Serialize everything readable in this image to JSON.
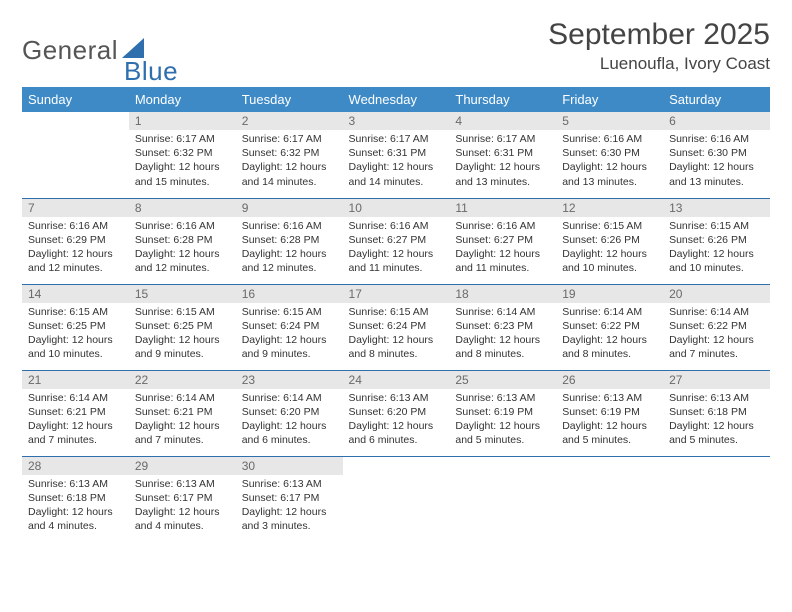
{
  "brand": {
    "word1": "General",
    "word2": "Blue",
    "color_word1": "#555555",
    "color_word2": "#2f6fae"
  },
  "title": "September 2025",
  "location": "Luenoufla, Ivory Coast",
  "colors": {
    "header_bg": "#3d8ac7",
    "header_text": "#ffffff",
    "daynum_bg": "#e7e7e7",
    "daynum_text": "#6a6a6a",
    "rule": "#2f6fae",
    "body_text": "#333333"
  },
  "weekdays": [
    "Sunday",
    "Monday",
    "Tuesday",
    "Wednesday",
    "Thursday",
    "Friday",
    "Saturday"
  ],
  "grid": [
    [
      null,
      {
        "n": "1",
        "sr": "6:17 AM",
        "ss": "6:32 PM",
        "dl": "12 hours and 15 minutes."
      },
      {
        "n": "2",
        "sr": "6:17 AM",
        "ss": "6:32 PM",
        "dl": "12 hours and 14 minutes."
      },
      {
        "n": "3",
        "sr": "6:17 AM",
        "ss": "6:31 PM",
        "dl": "12 hours and 14 minutes."
      },
      {
        "n": "4",
        "sr": "6:17 AM",
        "ss": "6:31 PM",
        "dl": "12 hours and 13 minutes."
      },
      {
        "n": "5",
        "sr": "6:16 AM",
        "ss": "6:30 PM",
        "dl": "12 hours and 13 minutes."
      },
      {
        "n": "6",
        "sr": "6:16 AM",
        "ss": "6:30 PM",
        "dl": "12 hours and 13 minutes."
      }
    ],
    [
      {
        "n": "7",
        "sr": "6:16 AM",
        "ss": "6:29 PM",
        "dl": "12 hours and 12 minutes."
      },
      {
        "n": "8",
        "sr": "6:16 AM",
        "ss": "6:28 PM",
        "dl": "12 hours and 12 minutes."
      },
      {
        "n": "9",
        "sr": "6:16 AM",
        "ss": "6:28 PM",
        "dl": "12 hours and 12 minutes."
      },
      {
        "n": "10",
        "sr": "6:16 AM",
        "ss": "6:27 PM",
        "dl": "12 hours and 11 minutes."
      },
      {
        "n": "11",
        "sr": "6:16 AM",
        "ss": "6:27 PM",
        "dl": "12 hours and 11 minutes."
      },
      {
        "n": "12",
        "sr": "6:15 AM",
        "ss": "6:26 PM",
        "dl": "12 hours and 10 minutes."
      },
      {
        "n": "13",
        "sr": "6:15 AM",
        "ss": "6:26 PM",
        "dl": "12 hours and 10 minutes."
      }
    ],
    [
      {
        "n": "14",
        "sr": "6:15 AM",
        "ss": "6:25 PM",
        "dl": "12 hours and 10 minutes."
      },
      {
        "n": "15",
        "sr": "6:15 AM",
        "ss": "6:25 PM",
        "dl": "12 hours and 9 minutes."
      },
      {
        "n": "16",
        "sr": "6:15 AM",
        "ss": "6:24 PM",
        "dl": "12 hours and 9 minutes."
      },
      {
        "n": "17",
        "sr": "6:15 AM",
        "ss": "6:24 PM",
        "dl": "12 hours and 8 minutes."
      },
      {
        "n": "18",
        "sr": "6:14 AM",
        "ss": "6:23 PM",
        "dl": "12 hours and 8 minutes."
      },
      {
        "n": "19",
        "sr": "6:14 AM",
        "ss": "6:22 PM",
        "dl": "12 hours and 8 minutes."
      },
      {
        "n": "20",
        "sr": "6:14 AM",
        "ss": "6:22 PM",
        "dl": "12 hours and 7 minutes."
      }
    ],
    [
      {
        "n": "21",
        "sr": "6:14 AM",
        "ss": "6:21 PM",
        "dl": "12 hours and 7 minutes."
      },
      {
        "n": "22",
        "sr": "6:14 AM",
        "ss": "6:21 PM",
        "dl": "12 hours and 7 minutes."
      },
      {
        "n": "23",
        "sr": "6:14 AM",
        "ss": "6:20 PM",
        "dl": "12 hours and 6 minutes."
      },
      {
        "n": "24",
        "sr": "6:13 AM",
        "ss": "6:20 PM",
        "dl": "12 hours and 6 minutes."
      },
      {
        "n": "25",
        "sr": "6:13 AM",
        "ss": "6:19 PM",
        "dl": "12 hours and 5 minutes."
      },
      {
        "n": "26",
        "sr": "6:13 AM",
        "ss": "6:19 PM",
        "dl": "12 hours and 5 minutes."
      },
      {
        "n": "27",
        "sr": "6:13 AM",
        "ss": "6:18 PM",
        "dl": "12 hours and 5 minutes."
      }
    ],
    [
      {
        "n": "28",
        "sr": "6:13 AM",
        "ss": "6:18 PM",
        "dl": "12 hours and 4 minutes."
      },
      {
        "n": "29",
        "sr": "6:13 AM",
        "ss": "6:17 PM",
        "dl": "12 hours and 4 minutes."
      },
      {
        "n": "30",
        "sr": "6:13 AM",
        "ss": "6:17 PM",
        "dl": "12 hours and 3 minutes."
      },
      null,
      null,
      null,
      null
    ]
  ],
  "labels": {
    "sunrise": "Sunrise:",
    "sunset": "Sunset:",
    "daylight": "Daylight:"
  }
}
